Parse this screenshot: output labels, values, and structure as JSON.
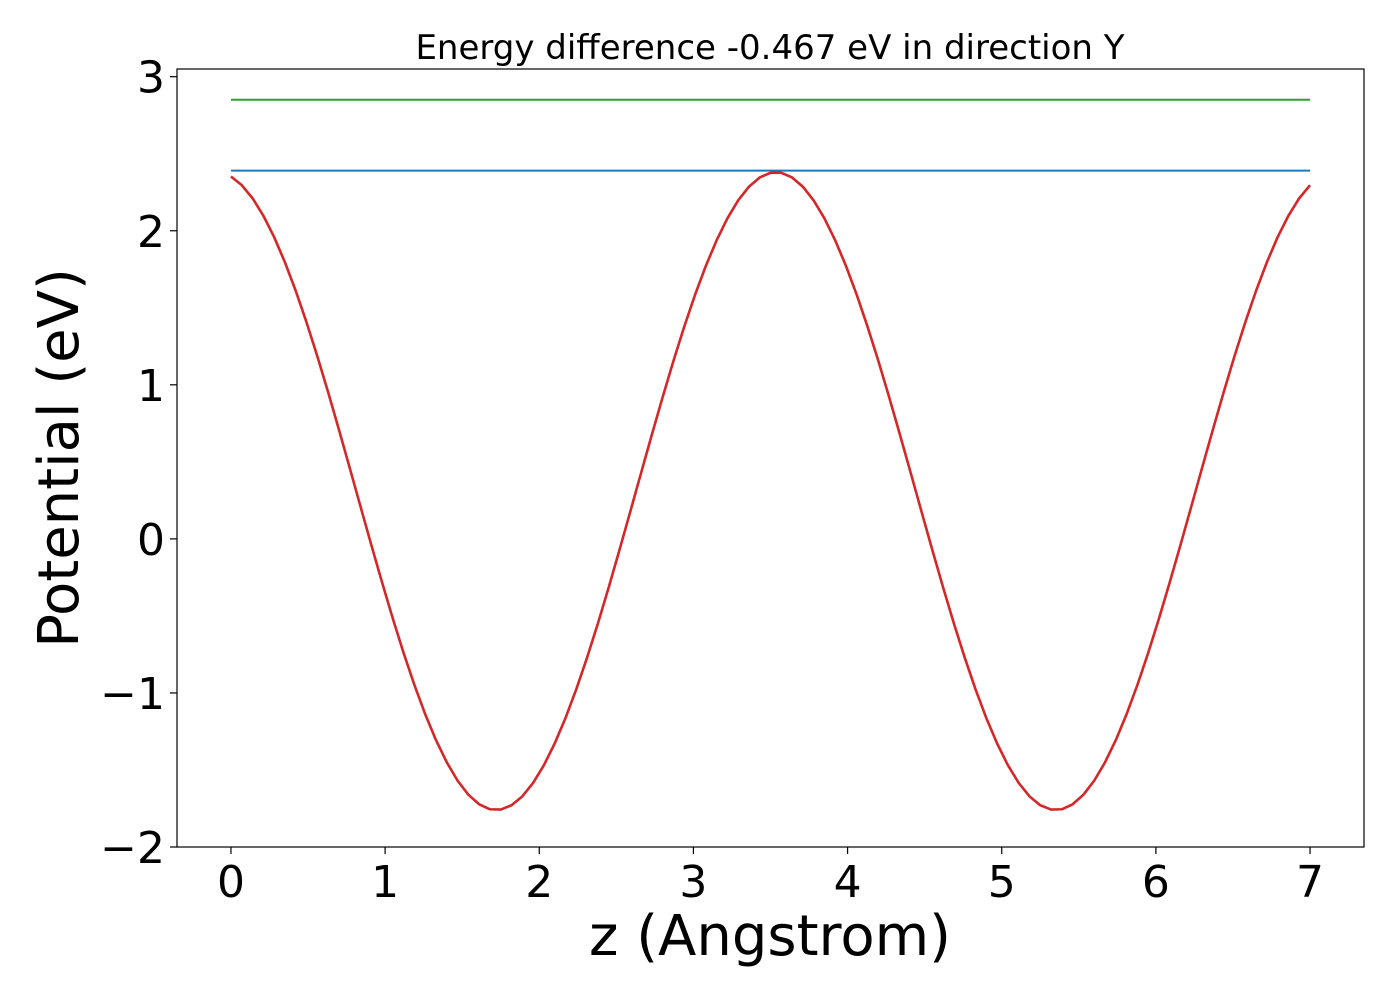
{
  "chart_data": {
    "type": "line",
    "title": "Energy difference -0.467 eV in direction Y",
    "xlabel": "z (Angstrom)",
    "ylabel": "Potential (eV)",
    "xlim": [
      -0.35,
      7.35
    ],
    "ylim": [
      -2.0,
      3.05
    ],
    "x_ticks": [
      0,
      1,
      2,
      3,
      4,
      5,
      6,
      7
    ],
    "x_tick_labels": [
      "0",
      "1",
      "2",
      "3",
      "4",
      "5",
      "6",
      "7"
    ],
    "y_ticks": [
      -2,
      -1,
      0,
      1,
      2,
      3
    ],
    "y_tick_labels": [
      "−2",
      "−1",
      "0",
      "1",
      "2",
      "3"
    ],
    "grid": false,
    "legend": "none",
    "series": [
      {
        "color": "#d62728",
        "style": "curve",
        "x_range": [
          0,
          7.0
        ],
        "points": 101,
        "mean": 0.31,
        "amplitude": 2.07,
        "period": 3.63,
        "min_at": 1.72
      },
      {
        "color": "#1f77b4",
        "style": "hline",
        "x_range": [
          0,
          7.0
        ],
        "y": 2.39
      },
      {
        "color": "#2ca02c",
        "style": "hline",
        "x_range": [
          0,
          7.0
        ],
        "y": 2.85
      }
    ]
  }
}
